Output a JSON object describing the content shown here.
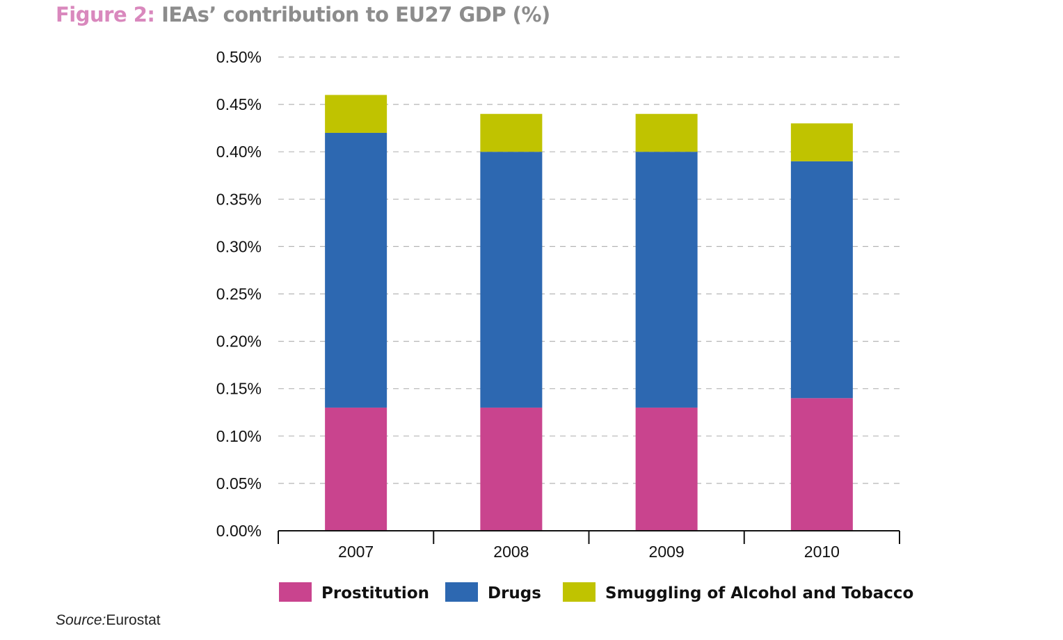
{
  "figure": {
    "label": "Figure 2:",
    "title": "IEAs’ contribution to EU27 GDP (%)"
  },
  "source": {
    "label": "Source:",
    "text": "Eurostat"
  },
  "chart_data": {
    "type": "bar",
    "stacked": true,
    "title": "IEAs’ contribution to EU27 GDP (%)",
    "categories": [
      "2007",
      "2008",
      "2009",
      "2010"
    ],
    "series": [
      {
        "name": "Prostitution",
        "color": "#c9448e",
        "values": [
          0.13,
          0.13,
          0.13,
          0.14
        ]
      },
      {
        "name": "Drugs",
        "color": "#2d68b1",
        "values": [
          0.29,
          0.27,
          0.27,
          0.25
        ]
      },
      {
        "name": "Smuggling of Alcohol and Tobacco",
        "color": "#c0c300",
        "values": [
          0.04,
          0.04,
          0.04,
          0.04
        ]
      }
    ],
    "ylim": [
      0,
      0.5
    ],
    "yticks": [
      0,
      0.05,
      0.1,
      0.15,
      0.2,
      0.25,
      0.3,
      0.35,
      0.4,
      0.45,
      0.5
    ],
    "ytick_labels": [
      "0.00%",
      "0.05%",
      "0.10%",
      "0.15%",
      "0.20%",
      "0.25%",
      "0.30%",
      "0.35%",
      "0.40%",
      "0.45%",
      "0.50%"
    ],
    "grid": "dashed horizontal",
    "legend_position": "bottom"
  }
}
